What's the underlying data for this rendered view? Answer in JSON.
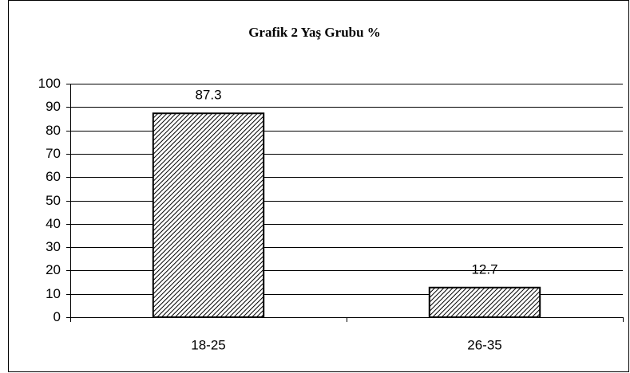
{
  "chart_data": {
    "type": "bar",
    "title": "Grafik 2 Yaş Grubu %",
    "categories": [
      "18-25",
      "26-35"
    ],
    "values": [
      87.3,
      12.7
    ],
    "color": "#000000",
    "ylim": [
      0,
      100
    ],
    "yticks": [
      0,
      10,
      20,
      30,
      40,
      50,
      60,
      70,
      80,
      90,
      100
    ],
    "grid": true
  }
}
